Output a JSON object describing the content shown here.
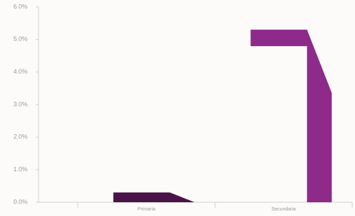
{
  "chart_data": {
    "type": "bar",
    "categories": [
      "Primaria",
      "Secundaria"
    ],
    "series": [
      {
        "color": "#8e2a8a",
        "values": [
          0.3,
          5.3
        ]
      }
    ],
    "colors": [
      "#4a1448",
      "#8e2a8a"
    ],
    "ylim": [
      0,
      6
    ],
    "yticks": [
      {
        "value": 0,
        "label": "0.0%"
      },
      {
        "value": 1,
        "label": "1.0%"
      },
      {
        "value": 2,
        "label": "2.0%"
      },
      {
        "value": 3,
        "label": "3.0%"
      },
      {
        "value": 4,
        "label": "4.0%"
      },
      {
        "value": 5,
        "label": "5.0%"
      },
      {
        "value": 6,
        "label": "6.0%"
      }
    ]
  }
}
